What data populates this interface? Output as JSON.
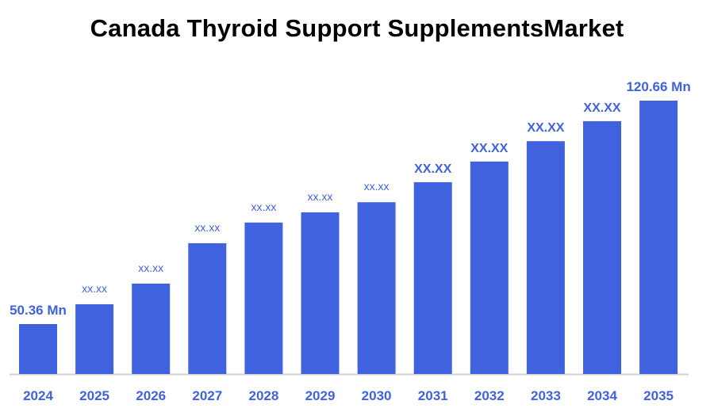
{
  "chart_data": {
    "type": "bar",
    "title": "Canada Thyroid Support SupplementsMarket",
    "categories": [
      "2024",
      "2025",
      "2026",
      "2027",
      "2028",
      "2029",
      "2030",
      "2031",
      "2032",
      "2033",
      "2034",
      "2035"
    ],
    "values": [
      50.36,
      56.6,
      63.1,
      75.8,
      82.3,
      85.5,
      88.7,
      95.0,
      101.5,
      107.9,
      114.2,
      120.66
    ],
    "data_labels": [
      "50.36 Mn",
      "xx.xx",
      "xx.xx",
      "xx.xx",
      "xx.xx",
      "xx.xx",
      "xx.xx",
      "XX.XX",
      "XX.XX",
      "XX.XX",
      "XX.XX",
      "120.66 Mn"
    ],
    "xlabel": "",
    "ylabel": "",
    "ylim": [
      35,
      125
    ],
    "grid": false,
    "legend": "none",
    "bar_color": "#4062DE",
    "label_color": "#4062DE"
  }
}
